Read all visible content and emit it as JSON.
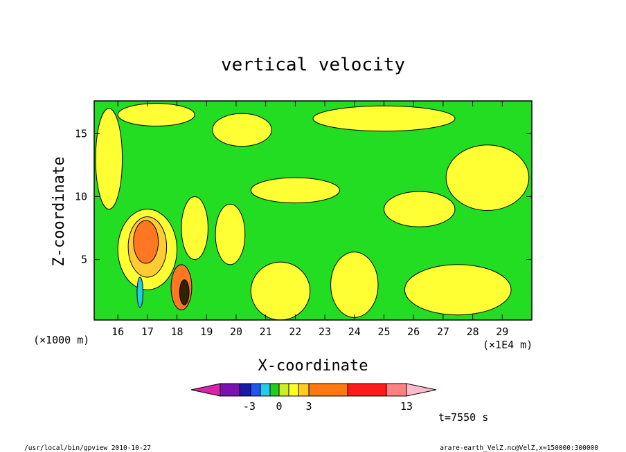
{
  "chart_data": {
    "type": "heatmap",
    "title": "vertical velocity",
    "xlabel": "X-coordinate",
    "ylabel": "Z-coordinate",
    "x_unit_label": "(×1E4 m)",
    "y_unit_label": "(×1000 m)",
    "xlim": [
      15.2,
      30.0
    ],
    "ylim": [
      0.2,
      17.6
    ],
    "x_ticks": [
      16,
      17,
      18,
      19,
      20,
      21,
      22,
      23,
      24,
      25,
      26,
      27,
      28,
      29
    ],
    "y_ticks": [
      5,
      10,
      15
    ],
    "colorbar": {
      "colors": [
        "#dd22aa",
        "#7a11b0",
        "#1a1aa8",
        "#2255ee",
        "#22ccee",
        "#22cc22",
        "#ccee22",
        "#ffff22",
        "#ffcc22",
        "#ff7711",
        "#ff1a1a",
        "#ff8080",
        "#ffbbcc"
      ],
      "tick_labels": [
        "-3",
        "0",
        "3",
        "13"
      ]
    },
    "background_color": "#22dd22",
    "features": [
      {
        "kind": "updraft",
        "fill": "#ffff33",
        "cx": 17.0,
        "cy": 5.8,
        "rx": 1.0,
        "ry": 3.2
      },
      {
        "kind": "updraft",
        "fill": "#ffcc33",
        "cx": 17.0,
        "cy": 6.0,
        "rx": 0.65,
        "ry": 2.4
      },
      {
        "kind": "updraft",
        "fill": "#ff7722",
        "cx": 16.95,
        "cy": 6.4,
        "rx": 0.42,
        "ry": 1.7
      },
      {
        "kind": "downdraft",
        "fill": "#22ccee",
        "cx": 16.75,
        "cy": 2.4,
        "rx": 0.1,
        "ry": 1.2
      },
      {
        "kind": "updraft",
        "fill": "#ff7722",
        "cx": 18.15,
        "cy": 2.8,
        "rx": 0.35,
        "ry": 1.8
      },
      {
        "kind": "core",
        "fill": "#332200",
        "cx": 18.25,
        "cy": 2.4,
        "rx": 0.16,
        "ry": 1.0
      },
      {
        "kind": "yellow-band",
        "fill": "#ffff33",
        "cx": 21.5,
        "cy": 2.5,
        "rx": 1.0,
        "ry": 2.3
      },
      {
        "kind": "yellow-band",
        "fill": "#ffff33",
        "cx": 24.0,
        "cy": 3.0,
        "rx": 0.8,
        "ry": 2.6
      },
      {
        "kind": "yellow-band",
        "fill": "#ffff33",
        "cx": 27.5,
        "cy": 2.6,
        "rx": 1.8,
        "ry": 2.0
      },
      {
        "kind": "yellow-band",
        "fill": "#ffff33",
        "cx": 28.5,
        "cy": 11.5,
        "rx": 1.4,
        "ry": 2.6
      },
      {
        "kind": "yellow-band",
        "fill": "#ffff33",
        "cx": 26.2,
        "cy": 9.0,
        "rx": 1.2,
        "ry": 1.4
      },
      {
        "kind": "yellow-band",
        "fill": "#ffff33",
        "cx": 25.0,
        "cy": 16.2,
        "rx": 2.4,
        "ry": 1.0
      },
      {
        "kind": "yellow-band",
        "fill": "#ffff33",
        "cx": 22.0,
        "cy": 10.5,
        "rx": 1.5,
        "ry": 1.0
      },
      {
        "kind": "yellow-band",
        "fill": "#ffff33",
        "cx": 15.7,
        "cy": 13.0,
        "rx": 0.45,
        "ry": 4.0
      },
      {
        "kind": "yellow-band",
        "fill": "#ffff33",
        "cx": 18.6,
        "cy": 7.5,
        "rx": 0.45,
        "ry": 2.5
      },
      {
        "kind": "yellow-band",
        "fill": "#ffff33",
        "cx": 19.8,
        "cy": 7.0,
        "rx": 0.5,
        "ry": 2.4
      },
      {
        "kind": "yellow-band",
        "fill": "#ffff33",
        "cx": 17.3,
        "cy": 16.5,
        "rx": 1.3,
        "ry": 0.9
      },
      {
        "kind": "yellow-band",
        "fill": "#ffff33",
        "cx": 20.2,
        "cy": 15.3,
        "rx": 1.0,
        "ry": 1.3
      }
    ]
  },
  "footer": {
    "time_label": "t=7550 s",
    "left_caption": "/usr/local/bin/gpview  2010-10-27",
    "right_caption": "arare-earth_VelZ.nc@VelZ,x=150000:300000"
  }
}
